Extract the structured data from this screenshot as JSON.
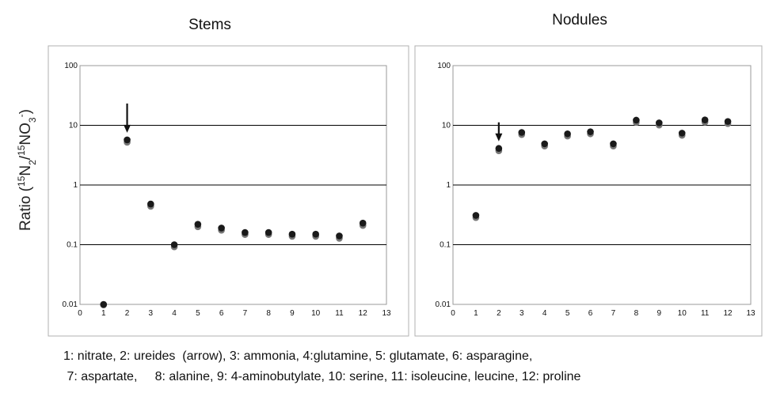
{
  "ylabel": {
    "prefix": "Ratio (",
    "sup1": "15",
    "n2": "N",
    "sub2": "2",
    "slash": "/",
    "sup2": "15",
    "no": "NO",
    "sub3": "3",
    "sup3": "-",
    "suffix": ")"
  },
  "legend": {
    "line1": "1: nitrate, 2: ureides  (arrow), 3: ammonia, 4:glutamine, 5: glutamate, 6: asparagine,",
    "line2": " 7: aspartate,     8: alanine, 9: 4-aminobutylate, 10: serine, 11: isoleucine, leucine, 12: proline"
  },
  "colors": {
    "series_main": "#1a1a1a",
    "series_shadow": "#777777",
    "frame": "#b0b0b0",
    "grid": "#000000"
  },
  "chart_data": [
    {
      "type": "scatter",
      "title": "Stems",
      "y_scale": "log",
      "xlim": [
        0,
        13
      ],
      "ylim": [
        0.01,
        100
      ],
      "x_ticks": [
        "0",
        "1",
        "2",
        "3",
        "4",
        "5",
        "6",
        "7",
        "8",
        "9",
        "10",
        "11",
        "12",
        "13"
      ],
      "y_ticks": [
        "0.01",
        "0.1",
        "1",
        "10",
        "100"
      ],
      "grid": "horizontal at decades",
      "arrow_at_x": 2,
      "x": [
        1,
        2,
        3,
        4,
        5,
        6,
        7,
        8,
        9,
        10,
        11,
        12
      ],
      "series": [
        {
          "values": [
            0.01,
            5.7,
            0.48,
            0.1,
            0.22,
            0.19,
            0.16,
            0.16,
            0.15,
            0.15,
            0.14,
            0.23
          ]
        },
        {
          "values": [
            0.0098,
            5.2,
            0.44,
            0.092,
            0.2,
            0.175,
            0.148,
            0.148,
            0.138,
            0.138,
            0.128,
            0.21
          ]
        }
      ]
    },
    {
      "type": "scatter",
      "title": "Nodules",
      "y_scale": "log",
      "xlim": [
        0,
        13
      ],
      "ylim": [
        0.01,
        100
      ],
      "x_ticks": [
        "0",
        "1",
        "2",
        "3",
        "4",
        "5",
        "6",
        "7",
        "8",
        "9",
        "10",
        "11",
        "12",
        "13"
      ],
      "y_ticks": [
        "0.01",
        "0.1",
        "1",
        "10",
        "100"
      ],
      "grid": "horizontal at decades",
      "arrow_at_x": 2,
      "x": [
        1,
        2,
        3,
        4,
        5,
        6,
        7,
        8,
        9,
        10,
        11,
        12
      ],
      "series": [
        {
          "values": [
            0.31,
            4.1,
            7.6,
            4.9,
            7.2,
            7.8,
            4.9,
            12.2,
            11.0,
            7.4,
            12.3,
            11.6
          ]
        },
        {
          "values": [
            0.285,
            3.75,
            7.0,
            4.5,
            6.6,
            7.2,
            4.5,
            11.2,
            10.1,
            6.8,
            11.3,
            10.7
          ]
        }
      ]
    }
  ]
}
